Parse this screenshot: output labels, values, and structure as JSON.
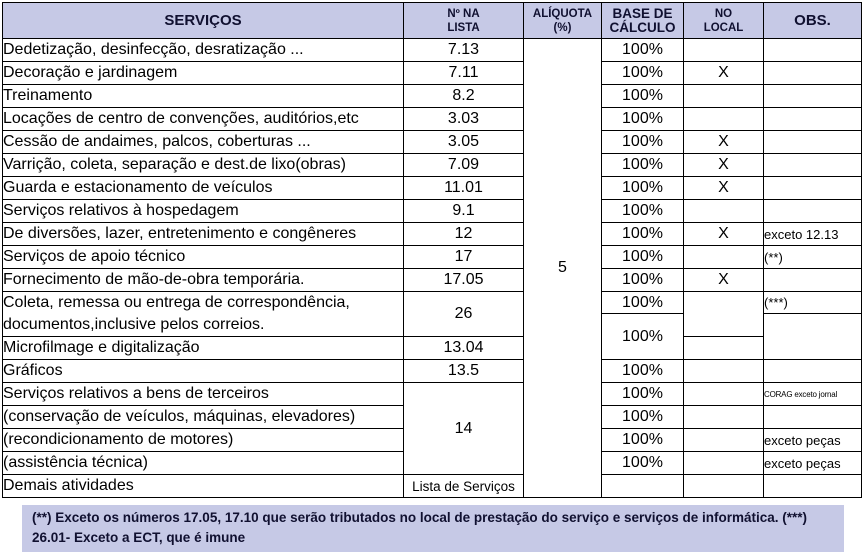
{
  "header": {
    "servicos": "SERVIÇOS",
    "lista_line1": "Nº NA",
    "lista_line2": "LISTA",
    "aliquota_line1": "ALÍQUOTA",
    "aliquota_line2": "(%)",
    "base_line1": "BASE DE",
    "base_line2": "CÁLCULO",
    "local_line1": "NO",
    "local_line2": "LOCAL",
    "obs": "OBS."
  },
  "aliquota_value": "5",
  "rows": [
    {
      "servico": "Dedetização, desinfecção, desratização ...",
      "lista": "7.13",
      "base": "100%",
      "local": "",
      "obs": ""
    },
    {
      "servico": "Decoração e jardinagem",
      "lista": "7.11",
      "base": "100%",
      "local": "X",
      "obs": ""
    },
    {
      "servico": "Treinamento",
      "lista": "8.2",
      "base": "100%",
      "local": "",
      "obs": ""
    },
    {
      "servico": "Locações de centro de convenções, auditórios,etc",
      "lista": "3.03",
      "base": "100%",
      "local": "",
      "obs": ""
    },
    {
      "servico": "Cessão de andaimes, palcos, coberturas ...",
      "lista": "3.05",
      "base": "100%",
      "local": "X",
      "obs": ""
    },
    {
      "servico": "Varrição, coleta, separação e dest.de lixo(obras)",
      "lista": "7.09",
      "base": "100%",
      "local": "X",
      "obs": ""
    },
    {
      "servico": "Guarda e estacionamento de veículos",
      "lista": "11.01",
      "base": "100%",
      "local": "X",
      "obs": ""
    },
    {
      "servico": "Serviços relativos à hospedagem",
      "lista": "9.1",
      "base": "100%",
      "local": "",
      "obs": ""
    },
    {
      "servico": "De diversões, lazer, entretenimento e congêneres",
      "lista": "12",
      "base": "100%",
      "local": "X",
      "obs": "exceto 12.13"
    },
    {
      "servico": "Serviços de apoio técnico",
      "lista": "17",
      "base": "100%",
      "local": "",
      "obs": "(**)"
    },
    {
      "servico": "Fornecimento de mão-de-obra temporária.",
      "lista": "17.05",
      "base": "100%",
      "local": "X",
      "obs": ""
    }
  ],
  "coleta": {
    "line1": "Coleta, remessa ou entrega de correspondência,",
    "line2": "documentos,inclusive pelos correios.",
    "lista": "26",
    "base": "100%",
    "obs": "(***)"
  },
  "microfilmagem": {
    "servico": "Microfilmage e digitalização",
    "lista": "13.04",
    "base_shared": "100%"
  },
  "graficos": {
    "servico": "Gráficos",
    "lista": "13.5",
    "base": "100%"
  },
  "bens": {
    "lista": "14",
    "rows": [
      {
        "servico": "Serviços relativos a bens de terceiros",
        "base": "100%",
        "obs": "CORAG exceto jornal"
      },
      {
        "servico": "(conservação de veículos, máquinas, elevadores)",
        "base": "100%",
        "obs": ""
      },
      {
        "servico": "(recondicionamento de motores)",
        "base": "100%",
        "obs": "exceto peças"
      },
      {
        "servico": "(assistência técnica)",
        "base": "100%",
        "obs": "exceto peças"
      }
    ]
  },
  "demais": {
    "servico": "Demais atividades",
    "lista": "Lista de Serviços"
  },
  "footnote": "(**) Exceto os números  17.05, 17.10 que serão tributados no local de prestação do serviço e serviços de informática.  (***)  26.01- Exceto a ECT, que é imune",
  "colors": {
    "header_bg": "#c6c9e6",
    "footnote_bg": "#c6c9e6"
  }
}
